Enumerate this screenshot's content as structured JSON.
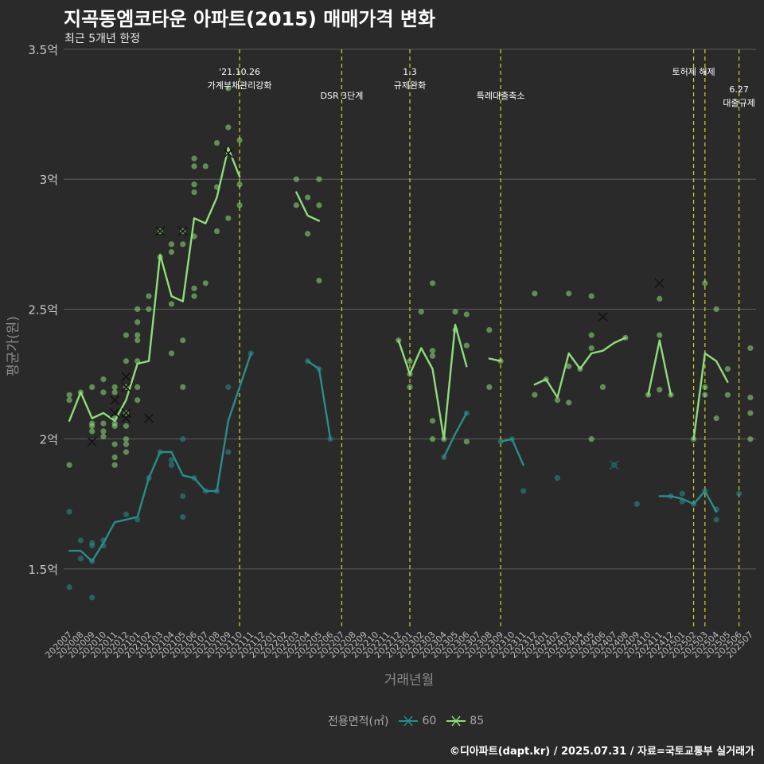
{
  "chart_data": {
    "type": "line",
    "title": "지곡동엠코타운 아파트(2015) 매매가격 변화",
    "subtitle": "최근 5개년 한정",
    "xlabel": "거래년월",
    "ylabel": "평균가(원)",
    "caption": "©디아파트(dapt.kr) / 2025.07.31 / 자료=국토교통부 실거래가",
    "legend_title": "전용면적(㎡)",
    "ylim": [
      1.27,
      3.5
    ],
    "y_ticks": [
      {
        "value": 1.5,
        "label": "1.5억"
      },
      {
        "value": 2.0,
        "label": "2억"
      },
      {
        "value": 2.5,
        "label": "2.5억"
      },
      {
        "value": 3.0,
        "label": "3억"
      },
      {
        "value": 3.5,
        "label": "3.5억"
      }
    ],
    "categories": [
      "202007",
      "202008",
      "202009",
      "202010",
      "202011",
      "202012",
      "202101",
      "202102",
      "202103",
      "202104",
      "202105",
      "202106",
      "202107",
      "202108",
      "202109",
      "202110",
      "202111",
      "202112",
      "202201",
      "202202",
      "202203",
      "202204",
      "202205",
      "202206",
      "202207",
      "202208",
      "202209",
      "202210",
      "202211",
      "202212",
      "202301",
      "202302",
      "202303",
      "202304",
      "202305",
      "202306",
      "202307",
      "202308",
      "202309",
      "202310",
      "202311",
      "202312",
      "202401",
      "202402",
      "202403",
      "202404",
      "202405",
      "202406",
      "202407",
      "202408",
      "202409",
      "202410",
      "202411",
      "202412",
      "202501",
      "202502",
      "202503",
      "202504",
      "202505",
      "202506",
      "202507"
    ],
    "series": [
      {
        "name": "60",
        "color": "#2a8c8c",
        "values": [
          1.57,
          1.57,
          1.53,
          1.6,
          1.68,
          1.69,
          1.7,
          1.85,
          1.95,
          1.95,
          1.86,
          1.85,
          1.8,
          1.8,
          2.07,
          2.2,
          2.33,
          null,
          null,
          null,
          null,
          2.3,
          2.27,
          2.0,
          null,
          null,
          null,
          null,
          null,
          null,
          null,
          null,
          null,
          1.93,
          2.02,
          2.1,
          null,
          null,
          1.99,
          2.0,
          1.9,
          null,
          null,
          1.85,
          null,
          null,
          null,
          1.9,
          null,
          null,
          null,
          null,
          1.78,
          1.78,
          1.77,
          1.75,
          1.8,
          1.72,
          null,
          1.79,
          null
        ],
        "points": [
          [
            "202007",
            1.72
          ],
          [
            "202007",
            1.43
          ],
          [
            "202008",
            1.61
          ],
          [
            "202008",
            1.54
          ],
          [
            "202009",
            1.59
          ],
          [
            "202009",
            1.53
          ],
          [
            "202009",
            1.6
          ],
          [
            "202009",
            1.39
          ],
          [
            "202010",
            1.61
          ],
          [
            "202010",
            1.59
          ],
          [
            "202012",
            1.71
          ],
          [
            "202101",
            1.69
          ],
          [
            "202102",
            1.85
          ],
          [
            "202103",
            1.95
          ],
          [
            "202104",
            1.9
          ],
          [
            "202104",
            1.92
          ],
          [
            "202105",
            2.0
          ],
          [
            "202105",
            1.78
          ],
          [
            "202105",
            1.7
          ],
          [
            "202106",
            1.85
          ],
          [
            "202107",
            1.8
          ],
          [
            "202108",
            1.8
          ],
          [
            "202109",
            1.95
          ],
          [
            "202109",
            2.2
          ],
          [
            "202111",
            2.33
          ],
          [
            "202204",
            2.3
          ],
          [
            "202205",
            2.27
          ],
          [
            "202206",
            2.0
          ],
          [
            "202304",
            1.93
          ],
          [
            "202306",
            2.1
          ],
          [
            "202309",
            1.99
          ],
          [
            "202310",
            2.0
          ],
          [
            "202311",
            1.8
          ],
          [
            "202402",
            1.85
          ],
          [
            "202407",
            1.9
          ],
          [
            "202409",
            1.75
          ],
          [
            "202412",
            1.78
          ],
          [
            "202501",
            1.79
          ],
          [
            "202501",
            1.76
          ],
          [
            "202502",
            1.75
          ],
          [
            "202503",
            1.8
          ],
          [
            "202504",
            1.73
          ],
          [
            "202504",
            1.69
          ],
          [
            "202506",
            1.79
          ]
        ],
        "cross_points": [
          [
            "202407",
            1.9
          ]
        ]
      },
      {
        "name": "85",
        "color": "#8fdc7a",
        "values": [
          2.07,
          2.18,
          2.08,
          2.1,
          2.07,
          2.15,
          2.29,
          2.3,
          2.71,
          2.55,
          2.53,
          2.85,
          2.83,
          2.93,
          3.12,
          3.01,
          null,
          null,
          null,
          null,
          2.95,
          2.86,
          2.84,
          null,
          null,
          null,
          null,
          null,
          null,
          2.38,
          2.25,
          2.35,
          2.27,
          2.0,
          2.44,
          2.28,
          null,
          2.31,
          2.3,
          null,
          null,
          2.21,
          2.23,
          2.16,
          2.33,
          2.27,
          2.33,
          2.34,
          2.37,
          2.39,
          null,
          2.17,
          2.38,
          2.17,
          null,
          2.0,
          2.33,
          2.3,
          2.22,
          null,
          2.2
        ],
        "points": [
          [
            "202007",
            2.17
          ],
          [
            "202007",
            2.15
          ],
          [
            "202007",
            1.9
          ],
          [
            "202008",
            2.18
          ],
          [
            "202009",
            2.2
          ],
          [
            "202009",
            2.06
          ],
          [
            "202009",
            2.05
          ],
          [
            "202009",
            2.03
          ],
          [
            "202010",
            2.23
          ],
          [
            "202010",
            2.06
          ],
          [
            "202010",
            2.03
          ],
          [
            "202010",
            2.01
          ],
          [
            "202010",
            2.18
          ],
          [
            "202011",
            2.2
          ],
          [
            "202011",
            2.18
          ],
          [
            "202011",
            2.08
          ],
          [
            "202011",
            2.06
          ],
          [
            "202011",
            2.05
          ],
          [
            "202011",
            1.98
          ],
          [
            "202011",
            1.93
          ],
          [
            "202011",
            1.9
          ],
          [
            "202012",
            2.4
          ],
          [
            "202012",
            2.3
          ],
          [
            "202012",
            2.2
          ],
          [
            "202012",
            2.1
          ],
          [
            "202012",
            2.05
          ],
          [
            "202012",
            2.0
          ],
          [
            "202012",
            1.98
          ],
          [
            "202012",
            1.95
          ],
          [
            "202101",
            2.5
          ],
          [
            "202101",
            2.45
          ],
          [
            "202101",
            2.4
          ],
          [
            "202101",
            2.38
          ],
          [
            "202101",
            2.3
          ],
          [
            "202101",
            2.2
          ],
          [
            "202101",
            2.15
          ],
          [
            "202102",
            2.55
          ],
          [
            "202102",
            2.5
          ],
          [
            "202103",
            2.8
          ],
          [
            "202103",
            2.7
          ],
          [
            "202104",
            2.75
          ],
          [
            "202104",
            2.72
          ],
          [
            "202104",
            2.52
          ],
          [
            "202104",
            2.33
          ],
          [
            "202105",
            2.8
          ],
          [
            "202105",
            2.75
          ],
          [
            "202105",
            2.38
          ],
          [
            "202105",
            2.2
          ],
          [
            "202106",
            3.08
          ],
          [
            "202106",
            3.05
          ],
          [
            "202106",
            2.98
          ],
          [
            "202106",
            2.95
          ],
          [
            "202106",
            2.78
          ],
          [
            "202106",
            2.58
          ],
          [
            "202106",
            2.55
          ],
          [
            "202107",
            3.05
          ],
          [
            "202107",
            2.6
          ],
          [
            "202108",
            3.14
          ],
          [
            "202108",
            2.97
          ],
          [
            "202108",
            2.8
          ],
          [
            "202109",
            3.35
          ],
          [
            "202109",
            3.2
          ],
          [
            "202109",
            2.85
          ],
          [
            "202110",
            3.15
          ],
          [
            "202110",
            2.98
          ],
          [
            "202110",
            2.9
          ],
          [
            "202203",
            3.0
          ],
          [
            "202203",
            2.9
          ],
          [
            "202204",
            2.93
          ],
          [
            "202204",
            2.79
          ],
          [
            "202205",
            3.0
          ],
          [
            "202205",
            2.9
          ],
          [
            "202205",
            2.61
          ],
          [
            "202212",
            2.38
          ],
          [
            "202301",
            2.3
          ],
          [
            "202301",
            2.25
          ],
          [
            "202301",
            2.2
          ],
          [
            "202302",
            2.49
          ],
          [
            "202303",
            2.6
          ],
          [
            "202303",
            2.34
          ],
          [
            "202303",
            2.32
          ],
          [
            "202303",
            2.07
          ],
          [
            "202303",
            2.0
          ],
          [
            "202304",
            2.0
          ],
          [
            "202305",
            2.49
          ],
          [
            "202305",
            2.42
          ],
          [
            "202306",
            2.48
          ],
          [
            "202306",
            2.36
          ],
          [
            "202306",
            1.99
          ],
          [
            "202308",
            2.42
          ],
          [
            "202308",
            2.2
          ],
          [
            "202309",
            2.3
          ],
          [
            "202312",
            2.56
          ],
          [
            "202312",
            2.17
          ],
          [
            "202401",
            2.23
          ],
          [
            "202402",
            2.15
          ],
          [
            "202403",
            2.56
          ],
          [
            "202403",
            2.28
          ],
          [
            "202403",
            2.14
          ],
          [
            "202404",
            2.27
          ],
          [
            "202405",
            2.55
          ],
          [
            "202405",
            2.4
          ],
          [
            "202405",
            2.35
          ],
          [
            "202405",
            2.0
          ],
          [
            "202406",
            2.2
          ],
          [
            "202408",
            2.39
          ],
          [
            "202410",
            2.17
          ],
          [
            "202411",
            2.54
          ],
          [
            "202411",
            2.4
          ],
          [
            "202411",
            2.19
          ],
          [
            "202412",
            2.17
          ],
          [
            "202502",
            2.0
          ],
          [
            "202503",
            2.6
          ],
          [
            "202503",
            2.2
          ],
          [
            "202503",
            2.17
          ],
          [
            "202504",
            2.5
          ],
          [
            "202504",
            2.08
          ],
          [
            "202505",
            2.27
          ],
          [
            "202505",
            2.17
          ],
          [
            "202507",
            2.35
          ],
          [
            "202507",
            2.16
          ],
          [
            "202507",
            2.1
          ],
          [
            "202507",
            2.0
          ]
        ],
        "cross_points": [
          [
            "202009",
            1.99
          ],
          [
            "202011",
            2.15
          ],
          [
            "202011",
            2.1
          ],
          [
            "202012",
            2.24
          ],
          [
            "202012",
            2.2
          ],
          [
            "202012",
            2.1
          ],
          [
            "202012",
            2.08
          ],
          [
            "202102",
            2.08
          ],
          [
            "202103",
            2.8
          ],
          [
            "202105",
            2.8
          ],
          [
            "202109",
            3.1
          ],
          [
            "202406",
            2.47
          ],
          [
            "202411",
            2.6
          ]
        ]
      }
    ],
    "event_lines": [
      {
        "x": "202110",
        "lines": [
          "'21.10.26",
          "가계부채관리강화"
        ],
        "level": 0
      },
      {
        "x": "202207",
        "lines": [
          "DSR 3단계"
        ],
        "level": 1
      },
      {
        "x": "202301",
        "lines": [
          "1.3",
          "규제완화"
        ],
        "level": 0
      },
      {
        "x": "202309",
        "lines": [
          "특례대출축소"
        ],
        "level": 1
      },
      {
        "x": "202502",
        "lines": [
          "토허제 해제"
        ],
        "level": 0
      },
      {
        "x": "202503",
        "lines": [],
        "level": 0
      },
      {
        "x": "202506",
        "lines": [
          "6.27",
          "대출규제"
        ],
        "level": 2
      }
    ]
  }
}
